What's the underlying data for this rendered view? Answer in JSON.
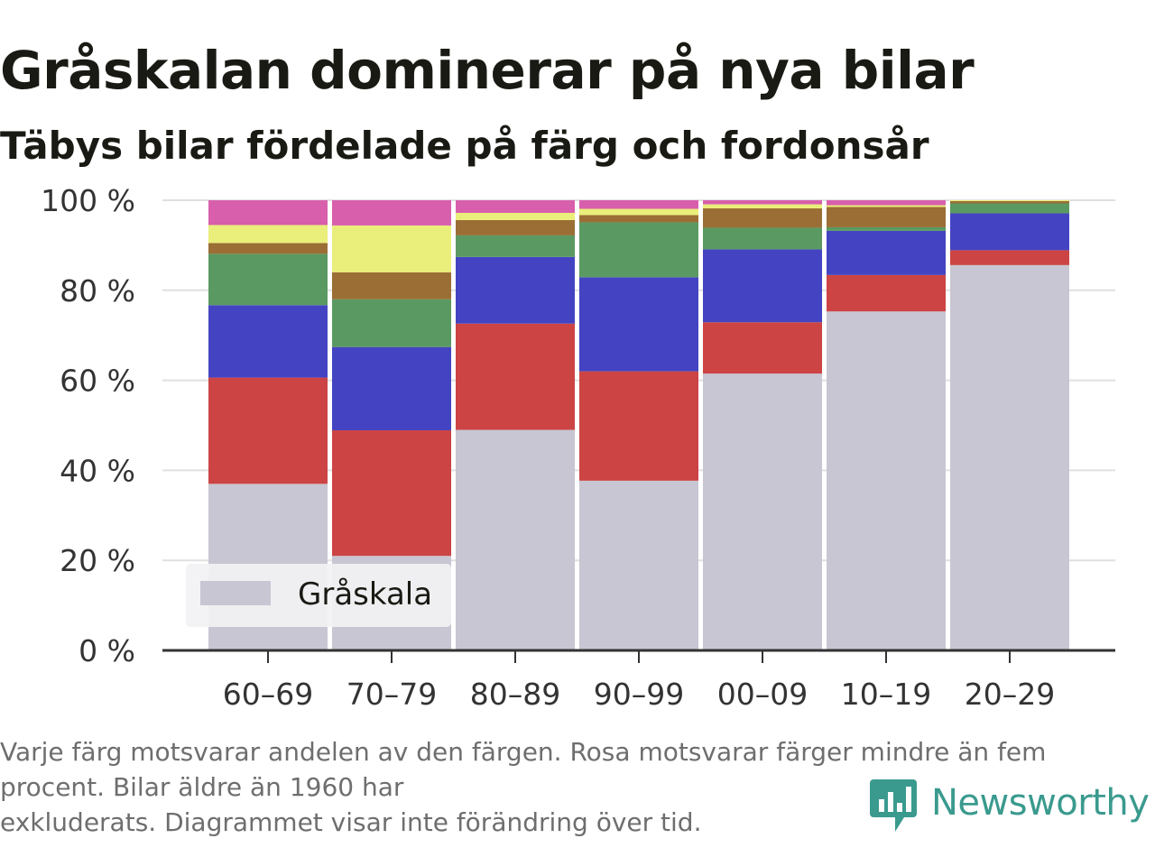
{
  "chart_data": {
    "type": "bar",
    "stacked": true,
    "normalized_percent": true,
    "title": "Gråskalan dominerar på nya bilar",
    "subtitle": "Täbys bilar fördelade på färg och fordonsår",
    "categories": [
      "60–69",
      "70–79",
      "80–89",
      "90–99",
      "00–09",
      "10–19",
      "20–29"
    ],
    "ylim": [
      0,
      100
    ],
    "yticks": [
      0,
      20,
      40,
      60,
      80,
      100
    ],
    "ytick_labels": [
      "0 %",
      "20 %",
      "40 %",
      "60 %",
      "80 %",
      "100 %"
    ],
    "grid": true,
    "legend": {
      "placement": "bottom-left",
      "entries": [
        "Gråskala"
      ]
    },
    "series": [
      {
        "name": "Gråskala",
        "color": "#c8c6d2",
        "values": [
          37,
          21,
          49,
          37.7,
          61.5,
          75.3,
          85.6
        ]
      },
      {
        "color": "#cc4444",
        "values": [
          23.6,
          27.9,
          23.6,
          24.3,
          11.4,
          8.1,
          3.3
        ]
      },
      {
        "color": "#4444c2",
        "values": [
          16.1,
          18.5,
          14.8,
          20.9,
          16.2,
          9.8,
          8.2
        ]
      },
      {
        "color": "#5a9a62",
        "values": [
          11.4,
          10.6,
          4.8,
          12.2,
          4.8,
          0.8,
          2.2
        ]
      },
      {
        "color": "#9a6e35",
        "values": [
          2.4,
          6.0,
          3.4,
          1.6,
          4.3,
          4.5,
          0.5
        ]
      },
      {
        "color": "#eaee7a",
        "values": [
          4.0,
          10.4,
          1.6,
          1.4,
          0.9,
          0.4,
          0.2
        ]
      },
      {
        "color": "#d85fac",
        "values": [
          5.5,
          5.6,
          2.8,
          1.9,
          0.9,
          1.1,
          0.0
        ]
      }
    ]
  },
  "footnote": {
    "line1": "Varje färg motsvarar andelen av den färgen. Rosa motsvarar färger mindre än fem procent. Bilar äldre än 1960 har",
    "line2": "exkluderats. Diagrammet visar inte förändring över tid."
  },
  "brand": {
    "name": "Newsworthy",
    "color": "#3a9a8e",
    "icon": "newsworthy-logo-icon"
  },
  "colors": {
    "text": "#1a1a14",
    "axis": "#333333",
    "grid": "#e0e0e0",
    "legend_bg": "#f2f2f4"
  }
}
